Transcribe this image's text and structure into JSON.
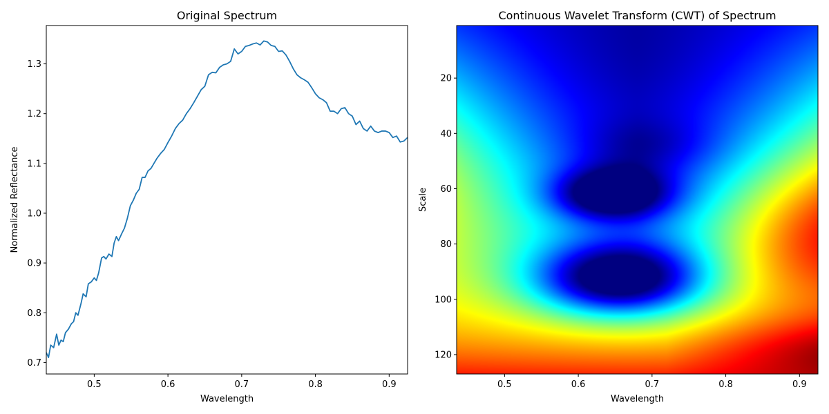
{
  "chart_data": [
    {
      "type": "line",
      "title": "Original Spectrum",
      "xlabel": "Wavelength",
      "ylabel": "Normalized Reflectance",
      "xlim": [
        0.435,
        0.925
      ],
      "ylim": [
        0.677,
        1.377
      ],
      "xticks": [
        0.5,
        0.6,
        0.7,
        0.8,
        0.9
      ],
      "xtick_labels": [
        "0.5",
        "0.6",
        "0.7",
        "0.8",
        "0.9"
      ],
      "yticks": [
        0.7,
        0.8,
        0.9,
        1.0,
        1.1,
        1.2,
        1.3
      ],
      "ytick_labels": [
        "0.7",
        "0.8",
        "0.9",
        "1.0",
        "1.1",
        "1.2",
        "1.3"
      ],
      "grid": false,
      "series": [
        {
          "color": "#1f77b4",
          "x": [
            0.435,
            0.438,
            0.441,
            0.445,
            0.449,
            0.452,
            0.455,
            0.458,
            0.461,
            0.465,
            0.469,
            0.472,
            0.475,
            0.478,
            0.482,
            0.485,
            0.489,
            0.492,
            0.496,
            0.5,
            0.503,
            0.506,
            0.51,
            0.513,
            0.516,
            0.52,
            0.524,
            0.527,
            0.53,
            0.533,
            0.537,
            0.541,
            0.545,
            0.549,
            0.553,
            0.557,
            0.561,
            0.565,
            0.569,
            0.573,
            0.577,
            0.581,
            0.585,
            0.59,
            0.595,
            0.6,
            0.605,
            0.61,
            0.615,
            0.62,
            0.625,
            0.63,
            0.635,
            0.64,
            0.645,
            0.65,
            0.655,
            0.66,
            0.665,
            0.67,
            0.675,
            0.68,
            0.685,
            0.69,
            0.695,
            0.7,
            0.705,
            0.71,
            0.715,
            0.72,
            0.725,
            0.73,
            0.735,
            0.74,
            0.745,
            0.75,
            0.755,
            0.76,
            0.765,
            0.77,
            0.775,
            0.78,
            0.785,
            0.79,
            0.795,
            0.8,
            0.805,
            0.81,
            0.815,
            0.82,
            0.825,
            0.83,
            0.835,
            0.84,
            0.845,
            0.85,
            0.855,
            0.86,
            0.865,
            0.87,
            0.875,
            0.88,
            0.885,
            0.89,
            0.895,
            0.9,
            0.905,
            0.91,
            0.915,
            0.92,
            0.925
          ],
          "y": [
            0.72,
            0.71,
            0.735,
            0.73,
            0.757,
            0.735,
            0.745,
            0.742,
            0.76,
            0.767,
            0.778,
            0.782,
            0.8,
            0.795,
            0.818,
            0.838,
            0.832,
            0.858,
            0.862,
            0.87,
            0.865,
            0.88,
            0.91,
            0.913,
            0.908,
            0.918,
            0.913,
            0.94,
            0.953,
            0.945,
            0.958,
            0.97,
            0.99,
            1.015,
            1.026,
            1.04,
            1.048,
            1.072,
            1.072,
            1.085,
            1.09,
            1.1,
            1.11,
            1.12,
            1.128,
            1.142,
            1.155,
            1.17,
            1.18,
            1.187,
            1.2,
            1.21,
            1.222,
            1.235,
            1.248,
            1.255,
            1.278,
            1.283,
            1.282,
            1.293,
            1.298,
            1.3,
            1.305,
            1.33,
            1.32,
            1.325,
            1.335,
            1.337,
            1.34,
            1.342,
            1.338,
            1.346,
            1.344,
            1.337,
            1.335,
            1.325,
            1.326,
            1.318,
            1.305,
            1.29,
            1.278,
            1.272,
            1.268,
            1.263,
            1.252,
            1.24,
            1.232,
            1.228,
            1.222,
            1.205,
            1.205,
            1.2,
            1.21,
            1.212,
            1.2,
            1.195,
            1.178,
            1.185,
            1.17,
            1.165,
            1.175,
            1.165,
            1.162,
            1.165,
            1.165,
            1.162,
            1.152,
            1.155,
            1.143,
            1.145,
            1.152
          ]
        }
      ]
    },
    {
      "type": "heatmap",
      "title": "Continuous Wavelet Transform (CWT) of Spectrum",
      "xlabel": "Wavelength",
      "ylabel": "Scale",
      "xlim": [
        0.435,
        0.925
      ],
      "ylim": [
        127,
        1
      ],
      "colormap": "jet",
      "xticks": [
        0.5,
        0.6,
        0.7,
        0.8,
        0.9
      ],
      "xtick_labels": [
        "0.5",
        "0.6",
        "0.7",
        "0.8",
        "0.9"
      ],
      "yticks": [
        20,
        40,
        60,
        80,
        100,
        120
      ],
      "ytick_labels": [
        "20",
        "40",
        "60",
        "80",
        "100",
        "120"
      ],
      "grid": false
    }
  ]
}
